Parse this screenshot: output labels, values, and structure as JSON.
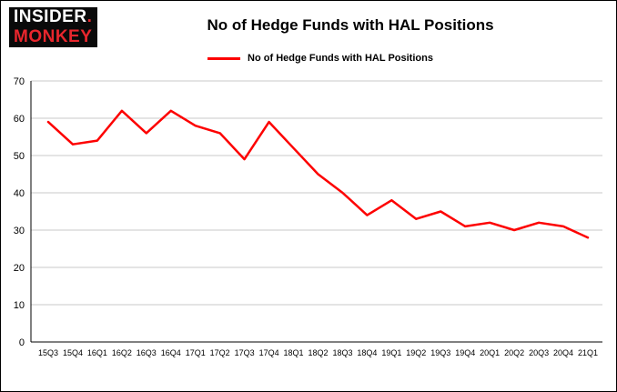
{
  "logo": {
    "line1": "INSIDER",
    "dot": ".",
    "line2": "MONKEY"
  },
  "chart_data": {
    "type": "line",
    "title": "No of Hedge Funds with HAL Positions",
    "legend": "No of Hedge Funds with HAL Positions",
    "categories": [
      "15Q3",
      "15Q4",
      "16Q1",
      "16Q2",
      "16Q3",
      "16Q4",
      "17Q1",
      "17Q2",
      "17Q3",
      "17Q4",
      "18Q1",
      "18Q2",
      "18Q3",
      "18Q4",
      "19Q1",
      "19Q2",
      "19Q3",
      "19Q4",
      "20Q1",
      "20Q2",
      "20Q3",
      "20Q4",
      "21Q1"
    ],
    "values": [
      59,
      53,
      54,
      62,
      56,
      62,
      58,
      56,
      49,
      59,
      52,
      45,
      40,
      34,
      38,
      33,
      35,
      31,
      32,
      30,
      32,
      31,
      28
    ],
    "xlabel": "",
    "ylabel": "",
    "ylim": [
      0,
      70
    ],
    "yticks": [
      0,
      10,
      20,
      30,
      40,
      50,
      60,
      70
    ],
    "grid": "horizontal",
    "legend_position": "top-center",
    "line_color": "#fd0000",
    "gridline_color": "#c8c8c8",
    "axis_color": "#000000"
  }
}
